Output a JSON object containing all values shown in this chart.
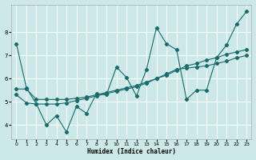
{
  "xlabel": "Humidex (Indice chaleur)",
  "background_color": "#cce8e8",
  "grid_color": "#ffffff",
  "line_color": "#1a6b6b",
  "x_ticks": [
    0,
    1,
    2,
    3,
    4,
    5,
    6,
    7,
    8,
    9,
    10,
    11,
    12,
    13,
    14,
    15,
    16,
    17,
    18,
    19,
    20,
    21,
    22,
    23
  ],
  "y_ticks": [
    4,
    5,
    6,
    7,
    8
  ],
  "ylim": [
    3.4,
    9.2
  ],
  "xlim": [
    -0.5,
    23.5
  ],
  "line1_x": [
    0,
    1,
    2,
    3,
    4,
    5,
    6,
    7,
    8,
    9,
    10,
    11,
    12,
    13,
    14,
    15,
    16,
    17,
    18,
    19,
    20,
    21,
    22,
    23
  ],
  "line1_y": [
    7.5,
    5.6,
    4.9,
    4.0,
    4.4,
    3.7,
    4.8,
    4.5,
    5.35,
    5.3,
    6.5,
    6.05,
    5.25,
    6.4,
    8.2,
    7.5,
    7.25,
    5.1,
    5.5,
    5.5,
    6.9,
    7.45,
    8.35,
    8.9
  ],
  "line2_x": [
    0,
    1,
    2,
    3,
    4,
    5,
    6,
    7,
    8,
    9,
    10,
    11,
    12,
    13,
    14,
    15,
    16,
    17,
    18,
    19,
    20,
    21,
    22,
    23
  ],
  "line2_y": [
    5.55,
    5.55,
    5.1,
    5.1,
    5.1,
    5.1,
    5.15,
    5.2,
    5.3,
    5.4,
    5.5,
    5.6,
    5.7,
    5.85,
    6.0,
    6.15,
    6.35,
    6.55,
    6.65,
    6.8,
    6.9,
    7.05,
    7.15,
    7.25
  ],
  "line3_x": [
    0,
    1,
    2,
    3,
    4,
    5,
    6,
    7,
    8,
    9,
    10,
    11,
    12,
    13,
    14,
    15,
    16,
    17,
    18,
    19,
    20,
    21,
    22,
    23
  ],
  "line3_y": [
    5.3,
    4.95,
    4.9,
    4.9,
    4.9,
    4.95,
    5.05,
    5.15,
    5.25,
    5.35,
    5.45,
    5.55,
    5.65,
    5.8,
    6.0,
    6.2,
    6.4,
    6.45,
    6.5,
    6.55,
    6.65,
    6.75,
    6.9,
    7.0
  ]
}
